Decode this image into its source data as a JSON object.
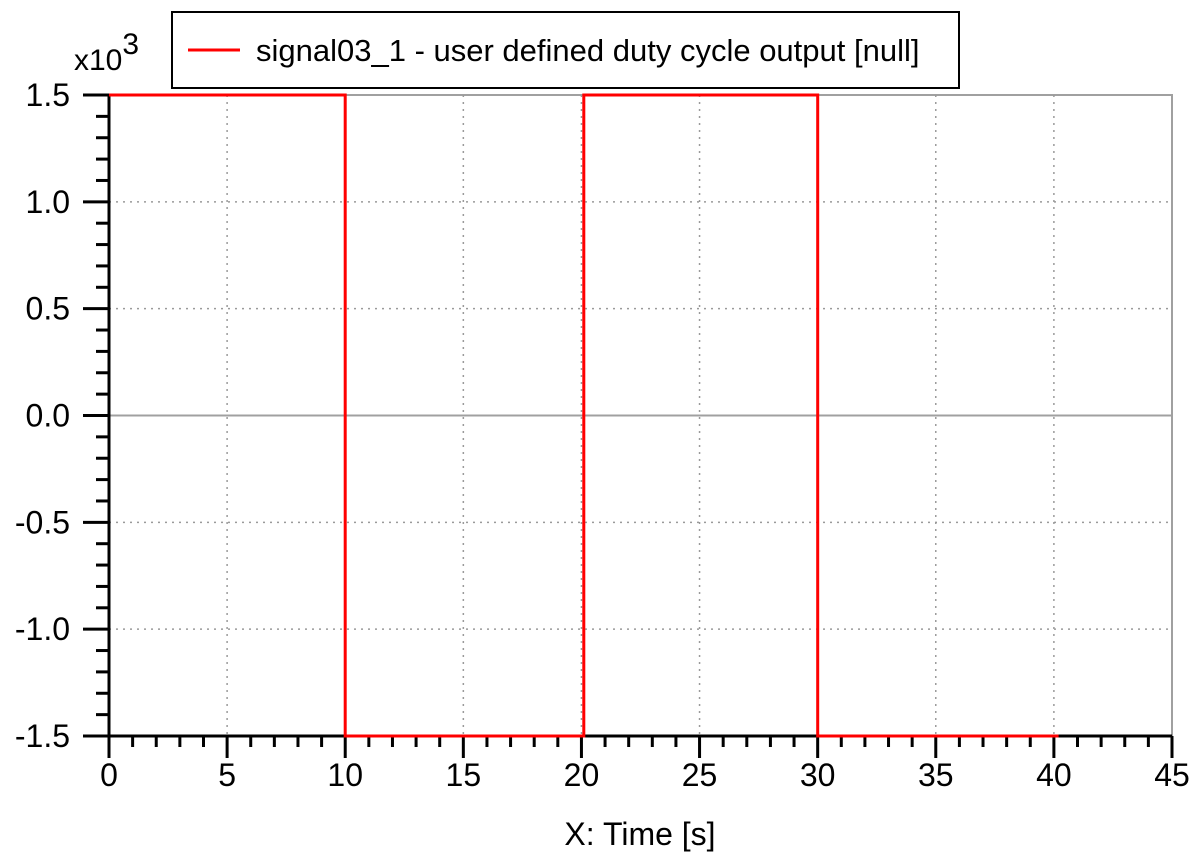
{
  "chart_data": {
    "type": "line",
    "xlabel": "X: Time [s]",
    "ylabel": "",
    "y_multiplier_base": "x10",
    "y_multiplier_exp": "3",
    "xlim": [
      0,
      45
    ],
    "ylim": [
      -1.5,
      1.5
    ],
    "x_ticks": [
      0,
      5,
      10,
      15,
      20,
      25,
      30,
      35,
      40,
      45
    ],
    "x_tick_labels": [
      "0",
      "5",
      "10",
      "15",
      "20",
      "25",
      "30",
      "35",
      "40",
      "45"
    ],
    "y_ticks": [
      -1.5,
      -1.0,
      -0.5,
      0.0,
      0.5,
      1.0,
      1.5
    ],
    "y_tick_labels": [
      "-1.5",
      "-1.0",
      "-0.5",
      "0.0",
      "0.5",
      "1.0",
      "1.5"
    ],
    "grid": true,
    "legend_position": "top-center",
    "series": [
      {
        "name": "signal03_1 - user defined duty cycle output [null]",
        "color": "#ff0000",
        "step": true,
        "x": [
          0,
          10,
          10,
          20.1,
          20.1,
          30,
          30,
          40.2
        ],
        "y": [
          1.5,
          1.5,
          -1.5,
          -1.5,
          1.5,
          1.5,
          -1.5,
          -1.5
        ]
      }
    ]
  }
}
